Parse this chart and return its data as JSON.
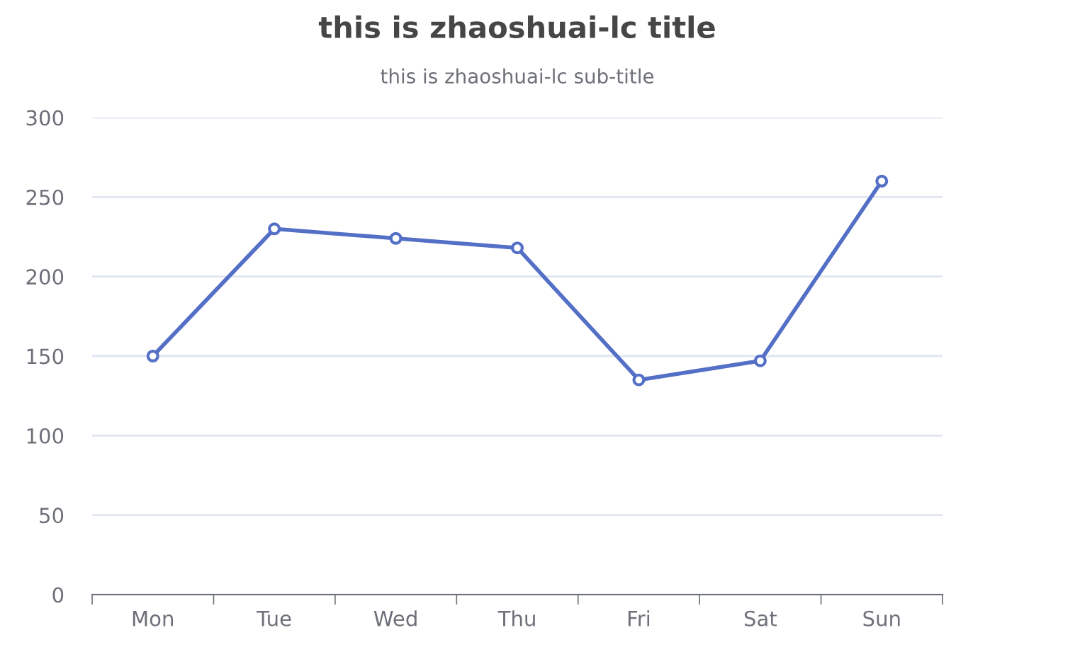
{
  "chart_data": {
    "type": "line",
    "title": "this is zhaoshuai-lc title",
    "subtitle": "this is zhaoshuai-lc sub-title",
    "categories": [
      "Mon",
      "Tue",
      "Wed",
      "Thu",
      "Fri",
      "Sat",
      "Sun"
    ],
    "series": [
      {
        "color": "#5470c6",
        "values": [
          150,
          230,
          224,
          218,
          135,
          147,
          260
        ]
      }
    ],
    "ylim": [
      0,
      300
    ],
    "yticks": [
      0,
      50,
      100,
      150,
      200,
      250,
      300
    ],
    "grid": "y",
    "marker": "circle",
    "line_style": "solid"
  }
}
